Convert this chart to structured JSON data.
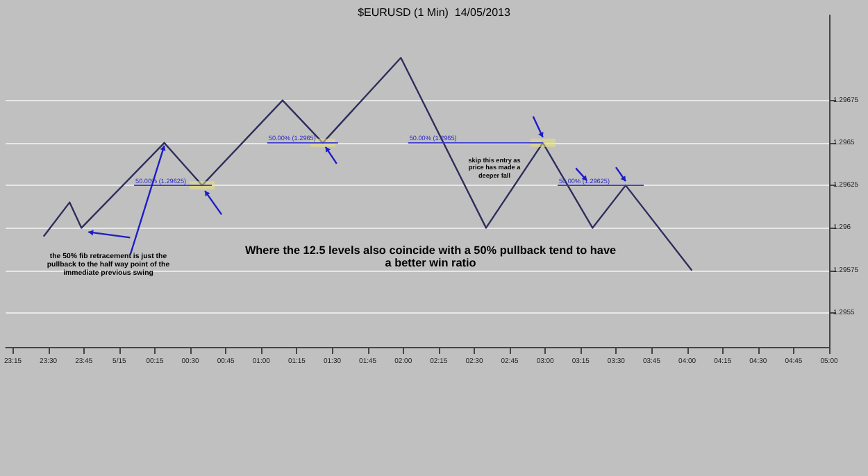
{
  "chart_data": {
    "type": "line",
    "title": "$EURUSD (1 Min)  14/05/2013",
    "x": [
      "2013-05-14T23:28",
      "2013-05-14T23:39",
      "2013-05-14T23:44",
      "2013-05-15T00:19",
      "2013-05-15T00:35",
      "2013-05-15T01:09",
      "2013-05-15T01:26",
      "2013-05-15T01:59",
      "2013-05-15T02:35",
      "2013-05-15T02:59",
      "2013-05-15T03:20",
      "2013-05-15T03:34",
      "2013-05-15T04:02"
    ],
    "series": [
      {
        "color": "#2e2e5c",
        "values": [
          1.29595,
          1.29615,
          1.296,
          1.2965,
          1.29625,
          1.29675,
          1.2965,
          1.297,
          1.296,
          1.2965,
          1.296,
          1.29625,
          1.29575
        ]
      }
    ],
    "xlim": [
      "2013-05-14T23:12",
      "2013-05-15T05:00"
    ],
    "xticks": [
      {
        "value": "2013-05-14T23:15",
        "label": "23:15"
      },
      {
        "value": "2013-05-14T23:30",
        "label": "23:30"
      },
      {
        "value": "2013-05-14T23:45",
        "label": "23:45"
      },
      {
        "value": "2013-05-15T00:00",
        "label": "5/15"
      },
      {
        "value": "2013-05-15T00:15",
        "label": "00:15"
      },
      {
        "value": "2013-05-15T00:30",
        "label": "00:30"
      },
      {
        "value": "2013-05-15T00:45",
        "label": "00:45"
      },
      {
        "value": "2013-05-15T01:00",
        "label": "01:00"
      },
      {
        "value": "2013-05-15T01:15",
        "label": "01:15"
      },
      {
        "value": "2013-05-15T01:30",
        "label": "01:30"
      },
      {
        "value": "2013-05-15T01:45",
        "label": "01:45"
      },
      {
        "value": "2013-05-15T02:00",
        "label": "02:00"
      },
      {
        "value": "2013-05-15T02:15",
        "label": "02:15"
      },
      {
        "value": "2013-05-15T02:30",
        "label": "02:30"
      },
      {
        "value": "2013-05-15T02:45",
        "label": "02:45"
      },
      {
        "value": "2013-05-15T03:00",
        "label": "03:00"
      },
      {
        "value": "2013-05-15T03:15",
        "label": "03:15"
      },
      {
        "value": "2013-05-15T03:30",
        "label": "03:30"
      },
      {
        "value": "2013-05-15T03:45",
        "label": "03:45"
      },
      {
        "value": "2013-05-15T04:00",
        "label": "04:00"
      },
      {
        "value": "2013-05-15T04:15",
        "label": "04:15"
      },
      {
        "value": "2013-05-15T04:30",
        "label": "04:30"
      },
      {
        "value": "2013-05-15T04:45",
        "label": "04:45"
      },
      {
        "value": "2013-05-15T05:00",
        "label": "05:00"
      }
    ],
    "ylim": [
      1.2953,
      1.29725
    ],
    "yticks": [
      1.2955,
      1.29575,
      1.296,
      1.29625,
      1.2965,
      1.29675
    ],
    "grid": "y",
    "marker": "none",
    "line_style": "solid",
    "annotations": [
      {
        "text": "50.00% (1.29625)",
        "x": "2013-05-15T00:35",
        "y": 1.29625
      },
      {
        "text": "50.00% (1.2965)",
        "x": "2013-05-15T01:26",
        "y": 1.2965
      },
      {
        "text": "50.00% (1.2965)",
        "x": "2013-05-15T02:59",
        "y": 1.2965
      },
      {
        "text": "50.00% (1.29625)",
        "x": "2013-05-15T03:34",
        "y": 1.29625
      },
      "skip this entry as price has made a deeper fall",
      {
        "text": "the 50% fib retracement is just the pullback to the half way point of the immediate previous swing",
        "x": "2013-05-15T00:19",
        "y": 1.2965
      },
      "Where the 12.5 levels also coincide with a 50% pullback tend to have a better win ratio"
    ]
  }
}
